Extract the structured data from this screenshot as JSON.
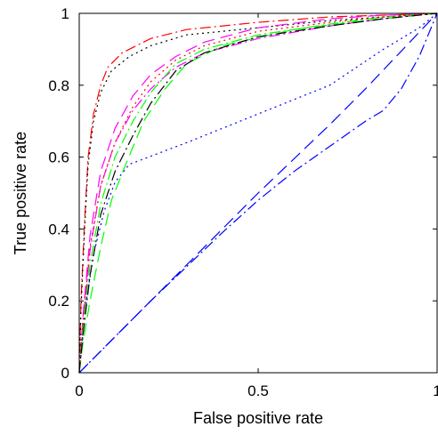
{
  "chart_data": {
    "type": "line",
    "title": "",
    "xlabel": "False positive rate",
    "ylabel": "True positive rate",
    "xlim": [
      0,
      1
    ],
    "ylim": [
      0,
      1
    ],
    "x_ticks": [
      {
        "value": 0,
        "label": "0"
      },
      {
        "value": 0.5,
        "label": "0.5"
      },
      {
        "value": 1,
        "label": "1"
      }
    ],
    "y_ticks": [
      {
        "value": 0,
        "label": "0"
      },
      {
        "value": 0.2,
        "label": "0.2"
      },
      {
        "value": 0.4,
        "label": "0.4"
      },
      {
        "value": 0.6,
        "label": "0.6"
      },
      {
        "value": 0.8,
        "label": "0.8"
      },
      {
        "value": 1,
        "label": "1"
      }
    ],
    "grid": false,
    "legend": "none",
    "series": [
      {
        "color": "#ff0000",
        "dash": "dashdot",
        "points": [
          [
            0,
            0
          ],
          [
            0.005,
            0.2
          ],
          [
            0.015,
            0.42
          ],
          [
            0.025,
            0.6
          ],
          [
            0.04,
            0.72
          ],
          [
            0.06,
            0.8
          ],
          [
            0.08,
            0.85
          ],
          [
            0.12,
            0.89
          ],
          [
            0.2,
            0.93
          ],
          [
            0.3,
            0.955
          ],
          [
            0.5,
            0.975
          ],
          [
            0.7,
            0.99
          ],
          [
            1,
            1
          ]
        ]
      },
      {
        "color": "#000000",
        "dash": "dotted",
        "points": [
          [
            0,
            0
          ],
          [
            0.005,
            0.18
          ],
          [
            0.015,
            0.4
          ],
          [
            0.025,
            0.58
          ],
          [
            0.04,
            0.7
          ],
          [
            0.06,
            0.78
          ],
          [
            0.09,
            0.84
          ],
          [
            0.14,
            0.88
          ],
          [
            0.2,
            0.91
          ],
          [
            0.3,
            0.94
          ],
          [
            0.5,
            0.96
          ],
          [
            0.7,
            0.98
          ],
          [
            1,
            1
          ]
        ]
      },
      {
        "color": "#ff00ff",
        "dash": "dashed",
        "points": [
          [
            0,
            0
          ],
          [
            0.01,
            0.15
          ],
          [
            0.03,
            0.38
          ],
          [
            0.06,
            0.56
          ],
          [
            0.1,
            0.68
          ],
          [
            0.15,
            0.77
          ],
          [
            0.2,
            0.83
          ],
          [
            0.27,
            0.88
          ],
          [
            0.35,
            0.92
          ],
          [
            0.5,
            0.96
          ],
          [
            0.7,
            0.985
          ],
          [
            0.85,
            0.995
          ],
          [
            1,
            1
          ]
        ]
      },
      {
        "color": "#ff00ff",
        "dash": "dashdot",
        "points": [
          [
            0,
            0
          ],
          [
            0.01,
            0.13
          ],
          [
            0.03,
            0.34
          ],
          [
            0.06,
            0.52
          ],
          [
            0.1,
            0.64
          ],
          [
            0.15,
            0.73
          ],
          [
            0.2,
            0.79
          ],
          [
            0.27,
            0.85
          ],
          [
            0.35,
            0.89
          ],
          [
            0.5,
            0.93
          ],
          [
            0.7,
            0.965
          ],
          [
            0.85,
            0.985
          ],
          [
            1,
            1
          ]
        ]
      },
      {
        "color": "#0000ff",
        "dash": "dotted",
        "points": [
          [
            0,
            0
          ],
          [
            0.01,
            0.1
          ],
          [
            0.02,
            0.2
          ],
          [
            0.04,
            0.33
          ],
          [
            0.07,
            0.45
          ],
          [
            0.1,
            0.53
          ],
          [
            0.14,
            0.58
          ],
          [
            0.3,
            0.64
          ],
          [
            0.5,
            0.72
          ],
          [
            0.7,
            0.8
          ],
          [
            0.85,
            0.9
          ],
          [
            0.95,
            0.96
          ],
          [
            1,
            1
          ]
        ]
      },
      {
        "color": "#00ff00",
        "dash": "dashed",
        "points": [
          [
            0,
            0
          ],
          [
            0.01,
            0.08
          ],
          [
            0.03,
            0.2
          ],
          [
            0.06,
            0.35
          ],
          [
            0.09,
            0.48
          ],
          [
            0.13,
            0.58
          ],
          [
            0.18,
            0.7
          ],
          [
            0.24,
            0.79
          ],
          [
            0.3,
            0.86
          ],
          [
            0.4,
            0.91
          ],
          [
            0.6,
            0.955
          ],
          [
            0.8,
            0.98
          ],
          [
            1,
            1
          ]
        ]
      },
      {
        "color": "#00ff00",
        "dash": "dashdot",
        "points": [
          [
            0,
            0
          ],
          [
            0.01,
            0.12
          ],
          [
            0.03,
            0.3
          ],
          [
            0.06,
            0.47
          ],
          [
            0.1,
            0.6
          ],
          [
            0.15,
            0.7
          ],
          [
            0.2,
            0.78
          ],
          [
            0.27,
            0.86
          ],
          [
            0.35,
            0.9
          ],
          [
            0.5,
            0.94
          ],
          [
            0.7,
            0.97
          ],
          [
            0.85,
            0.99
          ],
          [
            1,
            1
          ]
        ]
      },
      {
        "color": "#ff0000",
        "dash": "dotted",
        "points": [
          [
            0,
            0
          ],
          [
            0.01,
            0.14
          ],
          [
            0.03,
            0.35
          ],
          [
            0.06,
            0.52
          ],
          [
            0.1,
            0.64
          ],
          [
            0.15,
            0.74
          ],
          [
            0.2,
            0.81
          ],
          [
            0.27,
            0.87
          ],
          [
            0.35,
            0.91
          ],
          [
            0.5,
            0.95
          ],
          [
            0.7,
            0.975
          ],
          [
            0.85,
            0.99
          ],
          [
            1,
            1
          ]
        ]
      },
      {
        "color": "#000000",
        "dash": "dashdot",
        "points": [
          [
            0,
            0
          ],
          [
            0.01,
            0.1
          ],
          [
            0.03,
            0.27
          ],
          [
            0.06,
            0.44
          ],
          [
            0.1,
            0.56
          ],
          [
            0.15,
            0.66
          ],
          [
            0.2,
            0.75
          ],
          [
            0.27,
            0.84
          ],
          [
            0.35,
            0.89
          ],
          [
            0.5,
            0.935
          ],
          [
            0.7,
            0.965
          ],
          [
            0.85,
            0.985
          ],
          [
            1,
            1
          ]
        ]
      },
      {
        "color": "#0000ff",
        "dash": "dashed",
        "points": [
          [
            0,
            0
          ],
          [
            0.1,
            0.1
          ],
          [
            0.3,
            0.3
          ],
          [
            0.5,
            0.5
          ],
          [
            0.7,
            0.69
          ],
          [
            0.8,
            0.79
          ],
          [
            0.9,
            0.895
          ],
          [
            1,
            1
          ]
        ]
      },
      {
        "color": "#0000ff",
        "dash": "dashdot",
        "points": [
          [
            0,
            0
          ],
          [
            0.2,
            0.2
          ],
          [
            0.4,
            0.39
          ],
          [
            0.5,
            0.48
          ],
          [
            0.6,
            0.56
          ],
          [
            0.7,
            0.63
          ],
          [
            0.8,
            0.7
          ],
          [
            0.85,
            0.73
          ],
          [
            0.9,
            0.79
          ],
          [
            0.95,
            0.88
          ],
          [
            1,
            1
          ]
        ]
      }
    ]
  }
}
